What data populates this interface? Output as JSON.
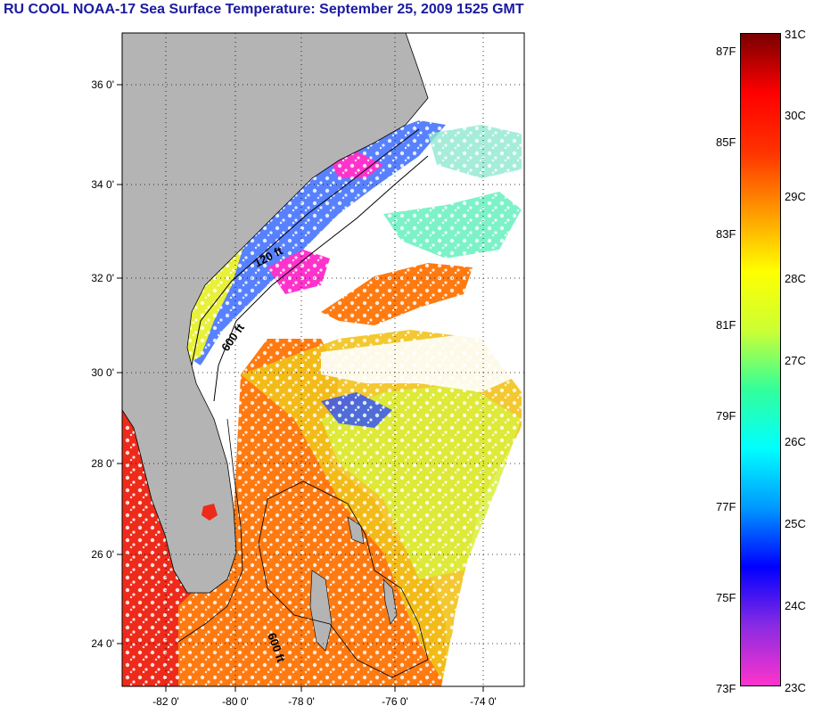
{
  "title": "RU COOL  NOAA-17  Sea Surface Temperature:  September 25, 2009 1525 GMT",
  "map": {
    "lat_labels": [
      "36 0'",
      "34 0'",
      "32 0'",
      "30 0'",
      "28 0'",
      "26 0'",
      "24 0'"
    ],
    "lon_labels": [
      "-82 0'",
      "-80 0'",
      "-78 0'",
      "-76 0'",
      "-74 0'"
    ],
    "contour_labels": [
      "120 ft",
      "600 ft",
      "600 ft"
    ],
    "land_color": "#b4b4b4"
  },
  "colorbar": {
    "fahrenheit_labels": [
      "87F",
      "85F",
      "83F",
      "81F",
      "79F",
      "77F",
      "75F",
      "73F"
    ],
    "celsius_labels": [
      "31C",
      "30C",
      "29C",
      "28C",
      "27C",
      "26C",
      "25C",
      "24C",
      "23C"
    ],
    "colors": [
      "#ff33cc",
      "#8a2be2",
      "#0000ff",
      "#0099ff",
      "#00ffff",
      "#33ff99",
      "#ccff33",
      "#ffff00",
      "#ff9900",
      "#ff3300",
      "#ff0000",
      "#7a0000"
    ]
  }
}
